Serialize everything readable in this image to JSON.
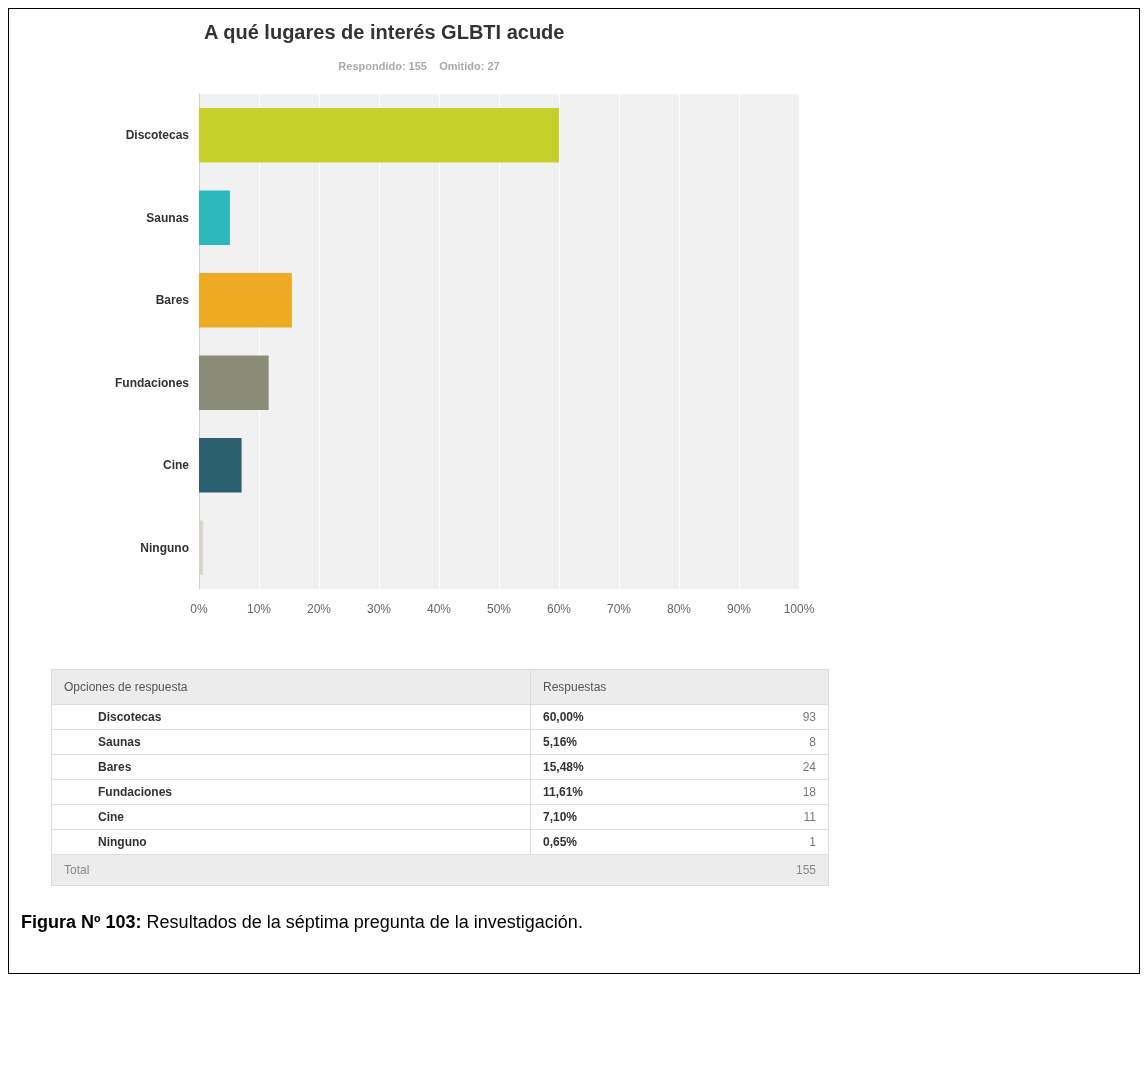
{
  "chart_data": [
    {
      "type": "bar",
      "orientation": "horizontal",
      "title": "A qué lugares de interés GLBTI acude",
      "subtitle": "Respondido: 155    Omitido: 27",
      "categories": [
        "Discotecas",
        "Saunas",
        "Bares",
        "Fundaciones",
        "Cine",
        "Ninguno"
      ],
      "values": [
        60,
        5.16,
        15.48,
        11.61,
        7.1,
        0.65
      ],
      "colors": [
        "#c5d12a",
        "#2db9bb",
        "#eeaa22",
        "#8b8b7a",
        "#2c5f6f",
        "#d8d5c8"
      ],
      "value_labels": [
        "60,00%",
        "5,16%",
        "15,48%",
        "11,61%",
        "7,10%",
        "0,65%"
      ],
      "xlim": [
        0,
        100
      ],
      "xticks": [
        {
          "value": 0,
          "label": "0%"
        },
        {
          "value": 10,
          "label": "10%"
        },
        {
          "value": 20,
          "label": "20%"
        },
        {
          "value": 30,
          "label": "30%"
        },
        {
          "value": 40,
          "label": "40%"
        },
        {
          "value": 50,
          "label": "50%"
        },
        {
          "value": 60,
          "label": "60%"
        },
        {
          "value": 70,
          "label": "70%"
        },
        {
          "value": 80,
          "label": "80%"
        },
        {
          "value": 90,
          "label": "90%"
        },
        {
          "value": 100,
          "label": "100%"
        }
      ],
      "grid": "x",
      "annotations": [
        "Figura Nº 103: Resultados de la séptima pregunta de la investigación."
      ]
    },
    {
      "type": "other",
      "xlabel": "Opciones de respuesta",
      "ylabel": "Respuestas",
      "categories": [
        "Discotecas",
        "Saunas",
        "Bares",
        "Fundaciones",
        "Cine",
        "Ninguno"
      ],
      "values": [
        93,
        8,
        24,
        18,
        11,
        1
      ],
      "data_labels": true,
      "annotations": [
        "Total",
        "155"
      ]
    }
  ]
}
